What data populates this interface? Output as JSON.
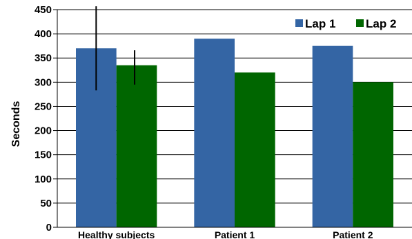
{
  "chart_data": {
    "type": "bar",
    "title": "",
    "xlabel": "",
    "ylabel": "Seconds",
    "ylim": [
      0,
      450
    ],
    "yticks": [
      0,
      50,
      100,
      150,
      200,
      250,
      300,
      350,
      400,
      450
    ],
    "grid": true,
    "legend_position": "top-right",
    "categories": [
      "Healthy subjects",
      "Patient 1",
      "Patient 2"
    ],
    "series": [
      {
        "name": "Lap 1",
        "color": "#3465a4",
        "values": [
          370,
          390,
          375
        ],
        "error_low": [
          283,
          null,
          null
        ],
        "error_high": [
          457,
          null,
          null
        ]
      },
      {
        "name": "Lap 2",
        "color": "#006600",
        "values": [
          335,
          320,
          300
        ],
        "error_low": [
          295,
          null,
          null
        ],
        "error_high": [
          366,
          null,
          null
        ]
      }
    ]
  }
}
